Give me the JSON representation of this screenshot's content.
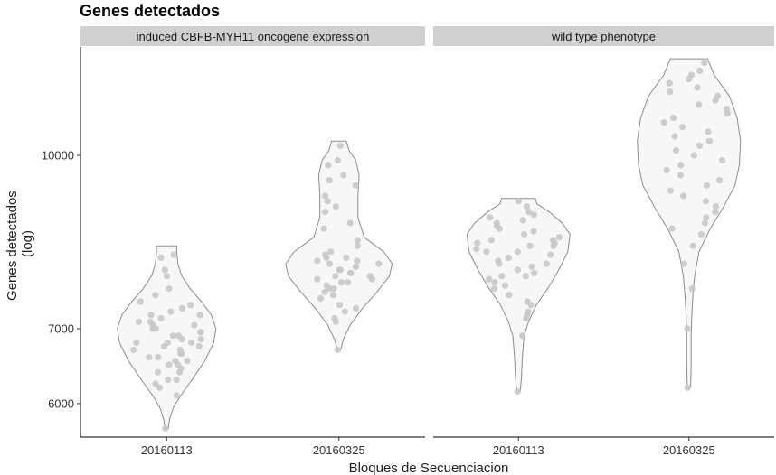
{
  "chart_data": {
    "type": "violin",
    "title": "Genes detectados",
    "xlabel": "Bloques de Secuenciacion",
    "ylabel_lines": [
      "Genes detectados",
      "(log)"
    ],
    "y_scale": "log",
    "ylim": [
      5600,
      12500
    ],
    "y_ticks": [
      6000,
      7000,
      10000
    ],
    "y_tick_labels": [
      "6000",
      "7000",
      "10000"
    ],
    "categories": [
      "20160113",
      "20160325"
    ],
    "colors": {
      "violin_fill": "#f7f7f7",
      "violin_stroke": "#8c8c8c",
      "point": "#c8c8c8",
      "strip_bg": "#d0d0d0"
    },
    "panels": [
      {
        "label": "induced CBFB-MYH11 oncogene expression",
        "groups": [
          {
            "category": "20160113",
            "min": 5700,
            "max": 8300,
            "profile": [
              [
                5700,
                0.03
              ],
              [
                5800,
                0.05
              ],
              [
                5950,
                0.12
              ],
              [
                6100,
                0.25
              ],
              [
                6300,
                0.45
              ],
              [
                6550,
                0.68
              ],
              [
                6800,
                0.84
              ],
              [
                7000,
                0.88
              ],
              [
                7200,
                0.8
              ],
              [
                7400,
                0.62
              ],
              [
                7600,
                0.42
              ],
              [
                7800,
                0.27
              ],
              [
                8000,
                0.2
              ],
              [
                8200,
                0.18
              ],
              [
                8300,
                0.18
              ]
            ],
            "points": [
              5700,
              6100,
              6200,
              6250,
              6300,
              6300,
              6400,
              6400,
              6450,
              6500,
              6500,
              6550,
              6550,
              6600,
              6600,
              6650,
              6650,
              6700,
              6700,
              6750,
              6750,
              6800,
              6800,
              6800,
              6850,
              6850,
              6900,
              6900,
              6950,
              6950,
              7000,
              7000,
              7050,
              7050,
              7100,
              7100,
              7150,
              7200,
              7200,
              7250,
              7300,
              7350,
              7400,
              7500,
              7600,
              7800,
              7900,
              8100,
              8150
            ]
          },
          {
            "category": "20160325",
            "min": 6700,
            "max": 10300,
            "profile": [
              [
                6700,
                0.03
              ],
              [
                6850,
                0.08
              ],
              [
                7050,
                0.2
              ],
              [
                7300,
                0.42
              ],
              [
                7550,
                0.68
              ],
              [
                7800,
                0.9
              ],
              [
                8000,
                0.95
              ],
              [
                8200,
                0.8
              ],
              [
                8450,
                0.45
              ],
              [
                8800,
                0.34
              ],
              [
                9200,
                0.34
              ],
              [
                9600,
                0.36
              ],
              [
                9900,
                0.3
              ],
              [
                10100,
                0.18
              ],
              [
                10300,
                0.13
              ]
            ],
            "points": [
              6700,
              7100,
              7150,
              7250,
              7300,
              7350,
              7450,
              7500,
              7550,
              7600,
              7600,
              7650,
              7700,
              7700,
              7750,
              7750,
              7800,
              7800,
              7850,
              7850,
              7900,
              7900,
              7950,
              8000,
              8000,
              8050,
              8050,
              8100,
              8100,
              8150,
              8200,
              8300,
              8400,
              8600,
              8700,
              8900,
              9000,
              9100,
              9200,
              9400,
              9500,
              9600,
              9800,
              9900,
              10200
            ]
          }
        ]
      },
      {
        "label": "wild type phenotype",
        "groups": [
          {
            "category": "20160113",
            "min": 6150,
            "max": 9150,
            "profile": [
              [
                6150,
                0.03
              ],
              [
                6300,
                0.05
              ],
              [
                6600,
                0.07
              ],
              [
                6900,
                0.1
              ],
              [
                7100,
                0.18
              ],
              [
                7350,
                0.32
              ],
              [
                7600,
                0.52
              ],
              [
                7900,
                0.72
              ],
              [
                8200,
                0.88
              ],
              [
                8500,
                0.92
              ],
              [
                8700,
                0.78
              ],
              [
                8900,
                0.55
              ],
              [
                9050,
                0.33
              ],
              [
                9150,
                0.3
              ]
            ],
            "points": [
              6150,
              6900,
              7150,
              7200,
              7250,
              7350,
              7400,
              7500,
              7600,
              7650,
              7700,
              7750,
              7800,
              7800,
              7850,
              7900,
              7950,
              8000,
              8000,
              8050,
              8100,
              8150,
              8200,
              8200,
              8250,
              8300,
              8300,
              8350,
              8350,
              8400,
              8400,
              8450,
              8500,
              8550,
              8600,
              8650,
              8700,
              8750,
              8800,
              8850,
              8900,
              9000,
              9100
            ]
          },
          {
            "category": "20160325",
            "min": 6200,
            "max": 12200,
            "profile": [
              [
                6200,
                0.03
              ],
              [
                6500,
                0.04
              ],
              [
                6900,
                0.04
              ],
              [
                7200,
                0.05
              ],
              [
                7500,
                0.07
              ],
              [
                7800,
                0.1
              ],
              [
                8200,
                0.18
              ],
              [
                8600,
                0.38
              ],
              [
                9000,
                0.62
              ],
              [
                9400,
                0.82
              ],
              [
                9800,
                0.9
              ],
              [
                10300,
                0.92
              ],
              [
                10800,
                0.86
              ],
              [
                11300,
                0.72
              ],
              [
                11800,
                0.45
              ],
              [
                12200,
                0.33
              ]
            ],
            "points": [
              6200,
              7000,
              7600,
              8000,
              8300,
              8500,
              8600,
              8700,
              8800,
              8900,
              9000,
              9100,
              9200,
              9300,
              9400,
              9500,
              9600,
              9700,
              9800,
              9900,
              10000,
              10100,
              10200,
              10300,
              10400,
              10500,
              10600,
              10700,
              10800,
              10900,
              11000,
              11100,
              11200,
              11300,
              11400,
              11500,
              11600,
              11700,
              11800,
              11900,
              12100
            ]
          }
        ]
      }
    ]
  }
}
